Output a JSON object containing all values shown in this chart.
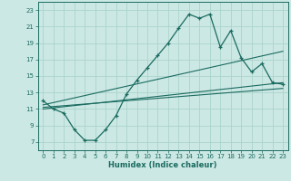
{
  "title": "",
  "xlabel": "Humidex (Indice chaleur)",
  "background_color": "#cce8e4",
  "grid_color": "#aad4cc",
  "line_color": "#1a6b60",
  "xlim": [
    -0.5,
    23.5
  ],
  "ylim": [
    6,
    24
  ],
  "xticks": [
    0,
    1,
    2,
    3,
    4,
    5,
    6,
    7,
    8,
    9,
    10,
    11,
    12,
    13,
    14,
    15,
    16,
    17,
    18,
    19,
    20,
    21,
    22,
    23
  ],
  "yticks": [
    7,
    9,
    11,
    13,
    15,
    17,
    19,
    21,
    23
  ],
  "series1_x": [
    0,
    1,
    2,
    3,
    4,
    5,
    6,
    7,
    8,
    9,
    10,
    11,
    12,
    13,
    14,
    15,
    16,
    17,
    18,
    19,
    20,
    21,
    22,
    23
  ],
  "series1_y": [
    12.0,
    11.0,
    10.5,
    8.5,
    7.2,
    7.2,
    8.5,
    10.2,
    12.8,
    14.5,
    16.0,
    17.5,
    19.0,
    20.8,
    22.5,
    22.0,
    22.5,
    18.5,
    20.5,
    17.2,
    15.5,
    16.5,
    14.2,
    14.0
  ],
  "line2_x0": 0,
  "line2_x1": 23,
  "line2_y0": 11.5,
  "line2_y1": 18.0,
  "line3_x0": 0,
  "line3_x1": 23,
  "line3_y0": 11.0,
  "line3_y1": 14.2,
  "line4_x0": 0,
  "line4_x1": 23,
  "line4_y0": 11.2,
  "line4_y1": 13.5
}
